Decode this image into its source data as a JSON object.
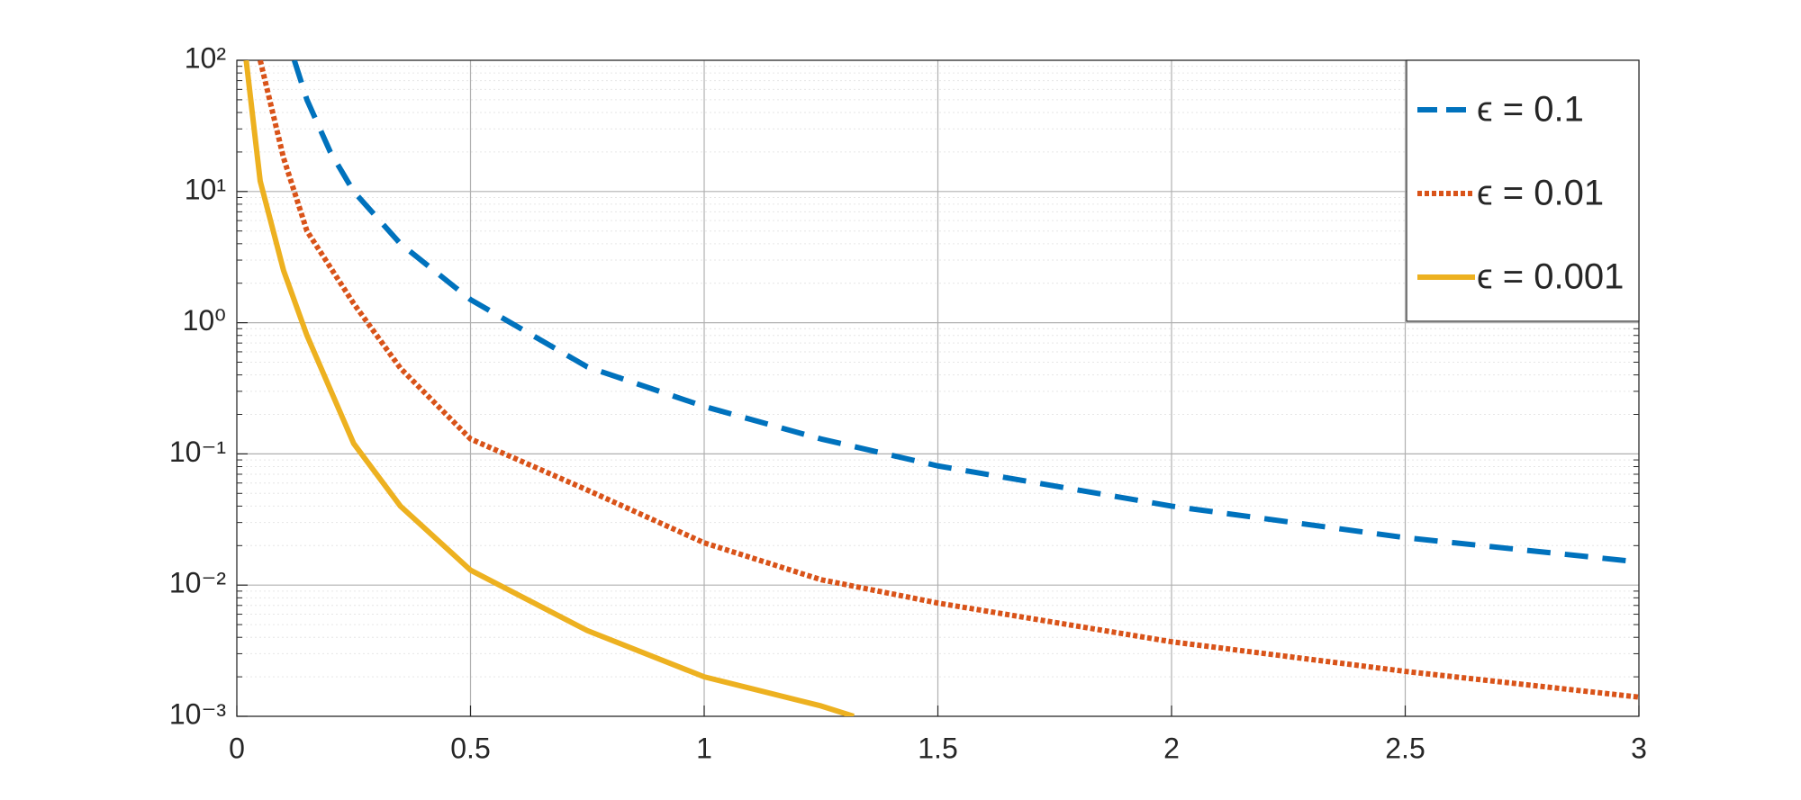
{
  "chart_data": {
    "type": "line",
    "x_scale": "linear",
    "y_scale": "log",
    "grid": true,
    "minor_grid": true,
    "legend": "upper right",
    "xlim": [
      0,
      3
    ],
    "xticks": [
      0,
      0.5,
      1,
      1.5,
      2,
      2.5,
      3
    ],
    "ylim": [
      0.001,
      100
    ],
    "yticks": [
      {
        "value": 0.001,
        "label": "10⁻³"
      },
      {
        "value": 0.01,
        "label": "10⁻²"
      },
      {
        "value": 0.1,
        "label": "10⁻¹"
      },
      {
        "value": 1,
        "label": "10⁰"
      },
      {
        "value": 10,
        "label": "10¹"
      },
      {
        "value": 100,
        "label": "10²"
      }
    ],
    "series": [
      {
        "name": "ϵ = 0.1",
        "color": "#0072bd",
        "dash": "dashed",
        "x": [
          0.123,
          0.15,
          0.2,
          0.25,
          0.35,
          0.5,
          0.75,
          1,
          1.25,
          1.5,
          2,
          2.5,
          3
        ],
        "values": [
          100,
          50,
          20,
          10,
          4,
          1.5,
          0.46,
          0.23,
          0.13,
          0.081,
          0.04,
          0.023,
          0.015
        ]
      },
      {
        "name": "ϵ = 0.01",
        "color": "#d95319",
        "dash": "dotted",
        "x": [
          0.05,
          0.1,
          0.15,
          0.25,
          0.35,
          0.5,
          0.75,
          1,
          1.25,
          1.5,
          2,
          2.5,
          3
        ],
        "values": [
          100,
          18,
          5,
          1.4,
          0.45,
          0.13,
          0.053,
          0.021,
          0.011,
          0.0073,
          0.0037,
          0.0022,
          0.0014
        ]
      },
      {
        "name": "ϵ = 0.001",
        "color": "#edb120",
        "dash": "solid",
        "x": [
          0.02,
          0.05,
          0.1,
          0.15,
          0.25,
          0.35,
          0.5,
          0.75,
          1,
          1.25,
          1.32
        ],
        "values": [
          100,
          12,
          2.5,
          0.8,
          0.12,
          0.04,
          0.013,
          0.0045,
          0.002,
          0.0012,
          0.001
        ]
      }
    ]
  }
}
